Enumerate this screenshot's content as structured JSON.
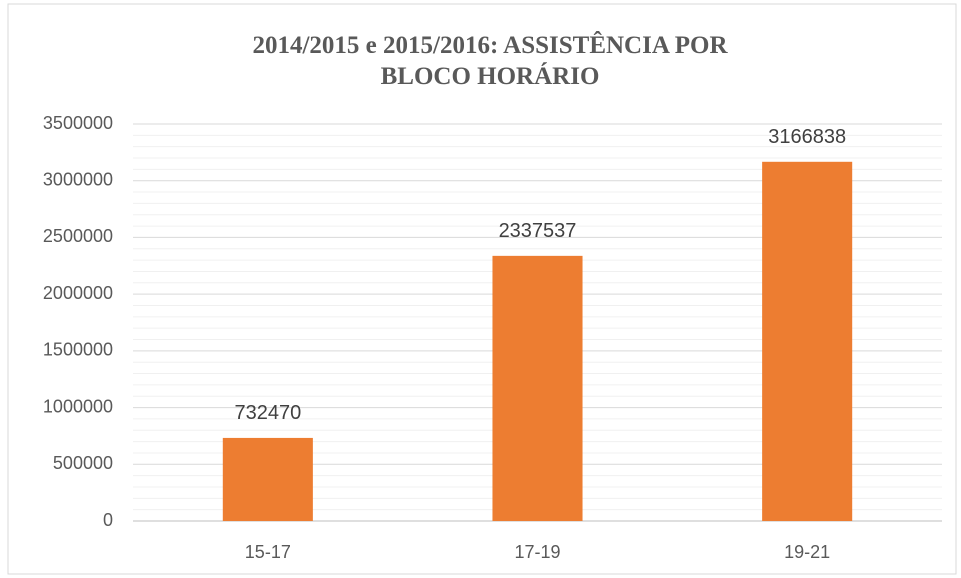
{
  "chart_data": {
    "type": "bar",
    "title": "2014/2015 e 2015/2016: ASSISTÊNCIA POR BLOCO HORÁRIO",
    "categories": [
      "15-17",
      "17-19",
      "19-21"
    ],
    "values": [
      732470,
      2337537,
      3166838
    ],
    "color": "#ed7d31",
    "ylim": [
      0,
      3500000
    ],
    "yticks": [
      0,
      500000,
      1000000,
      1500000,
      2000000,
      2500000,
      3000000,
      3500000
    ],
    "grid": true,
    "minor_divisions": 5
  }
}
